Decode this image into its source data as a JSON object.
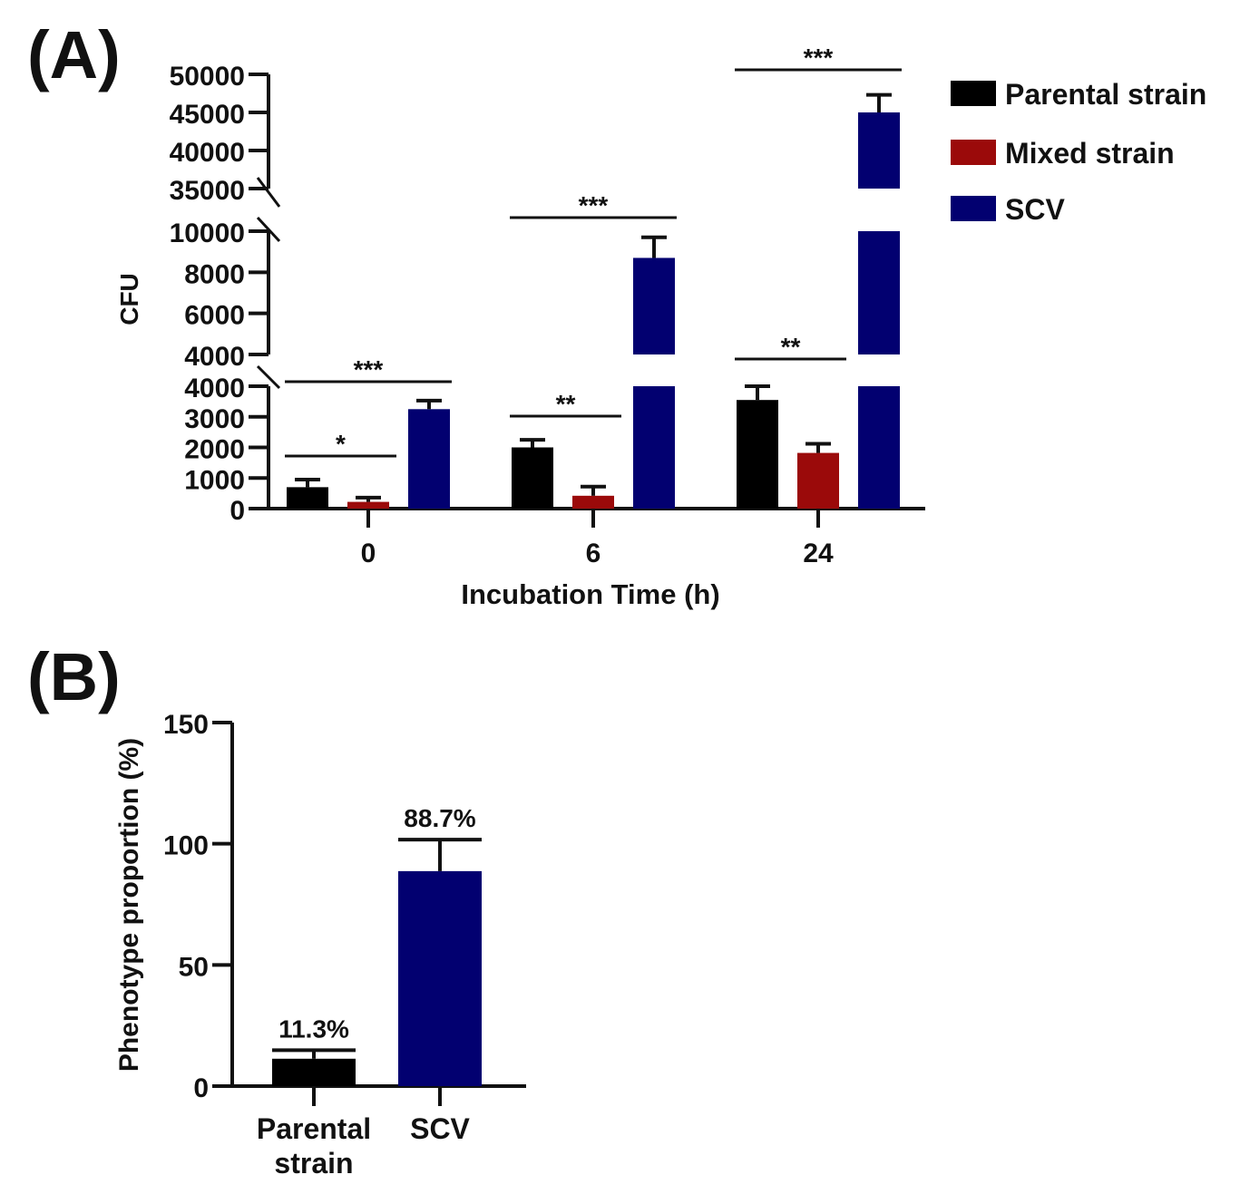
{
  "colors": {
    "parental": "#000000",
    "mixed": "#9b0a0a",
    "scv": "#020070",
    "ink": "#111111"
  },
  "chart_data": [
    {
      "panel_label": "(A)",
      "type": "bar",
      "xlabel": "Incubation Time (h)",
      "ylabel": "CFU",
      "categories": [
        "0",
        "6",
        "24"
      ],
      "series": [
        {
          "name": "Parental strain",
          "color_key": "parental",
          "values": [
            700,
            2000,
            3550
          ],
          "errors": [
            250,
            250,
            450
          ]
        },
        {
          "name": "Mixed strain",
          "color_key": "mixed",
          "values": [
            220,
            420,
            1820
          ],
          "errors": [
            140,
            300,
            300
          ]
        },
        {
          "name": "SCV",
          "color_key": "scv",
          "values": [
            3250,
            8700,
            45000
          ],
          "errors": [
            280,
            1000,
            2300
          ]
        }
      ],
      "y_segments": [
        {
          "range": [
            0,
            4000
          ],
          "ticks": [
            0,
            1000,
            2000,
            3000,
            4000
          ]
        },
        {
          "range": [
            4000,
            10000
          ],
          "ticks": [
            4000,
            6000,
            8000,
            10000
          ]
        },
        {
          "range": [
            35000,
            50000
          ],
          "ticks": [
            35000,
            40000,
            45000,
            50000
          ]
        }
      ],
      "significance": [
        {
          "category": "0",
          "from_series": 0,
          "to_series": 1,
          "label": "*"
        },
        {
          "category": "0",
          "from_series": 0,
          "to_series": 2,
          "label": "***"
        },
        {
          "category": "6",
          "from_series": 0,
          "to_series": 1,
          "label": "**"
        },
        {
          "category": "6",
          "from_series": 0,
          "to_series": 2,
          "label": "***"
        },
        {
          "category": "24",
          "from_series": 0,
          "to_series": 1,
          "label": "**"
        },
        {
          "category": "24",
          "from_series": 0,
          "to_series": 2,
          "label": "***"
        }
      ],
      "legend_position": "top-right"
    },
    {
      "panel_label": "(B)",
      "type": "bar",
      "xlabel": "",
      "ylabel": "Phenotype proportion (%)",
      "categories": [
        "Parental strain",
        "SCV"
      ],
      "category_lines": [
        [
          "Parental",
          "strain"
        ],
        [
          "SCV"
        ]
      ],
      "values": [
        11.3,
        88.7
      ],
      "errors": [
        3.5,
        13
      ],
      "data_labels": [
        "11.3%",
        "88.7%"
      ],
      "color_keys": [
        "parental",
        "scv"
      ],
      "ylim": [
        0,
        150
      ],
      "ticks": [
        0,
        50,
        100,
        150
      ]
    }
  ]
}
